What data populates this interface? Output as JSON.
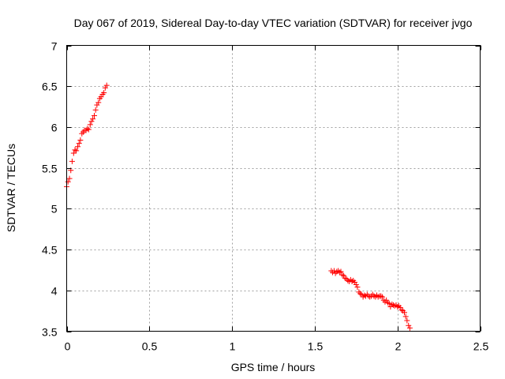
{
  "chart_data": {
    "type": "scatter",
    "title": "Day 067 of 2019, Sidereal Day-to-day VTEC variation (SDTVAR) for receiver jvgo",
    "xlabel": "GPS time / hours",
    "ylabel": "SDTVAR / TECUs",
    "xlim": [
      0,
      2.5
    ],
    "ylim": [
      3.5,
      7
    ],
    "xticks": [
      0,
      0.5,
      1,
      1.5,
      2,
      2.5
    ],
    "xtick_labels": [
      "0",
      "0.5",
      "1",
      "1.5",
      "2",
      "2.5"
    ],
    "yticks": [
      3.5,
      4,
      4.5,
      5,
      5.5,
      6,
      6.5,
      7
    ],
    "ytick_labels": [
      "3.5",
      "4",
      "4.5",
      "5",
      "5.5",
      "6",
      "6.5",
      "7"
    ],
    "grid": true,
    "marker": "+",
    "marker_color": "#ff0000",
    "series": [
      {
        "x": [
          0.0,
          0.008,
          0.017,
          0.025,
          0.033,
          0.042,
          0.05,
          0.058,
          0.067,
          0.075,
          0.083,
          0.092,
          0.1,
          0.108,
          0.117,
          0.125,
          0.133,
          0.142,
          0.15,
          0.158,
          0.167,
          0.175,
          0.183,
          0.192,
          0.2,
          0.208,
          0.217,
          0.225,
          0.233,
          0.242
        ],
        "y": [
          5.27,
          5.33,
          5.37,
          5.47,
          5.58,
          5.68,
          5.72,
          5.71,
          5.76,
          5.8,
          5.84,
          5.92,
          5.94,
          5.96,
          5.96,
          5.98,
          5.97,
          6.03,
          6.07,
          6.1,
          6.14,
          6.21,
          6.27,
          6.3,
          6.35,
          6.37,
          6.4,
          6.42,
          6.48,
          6.51
        ]
      },
      {
        "x": [
          1.6,
          1.608,
          1.617,
          1.625,
          1.633,
          1.642,
          1.65,
          1.658,
          1.667,
          1.675,
          1.683,
          1.692,
          1.7,
          1.708,
          1.717,
          1.725,
          1.733,
          1.742,
          1.75,
          1.758,
          1.767,
          1.775,
          1.783,
          1.792,
          1.8,
          1.808,
          1.817,
          1.825,
          1.833,
          1.842,
          1.85,
          1.858,
          1.867,
          1.875,
          1.883,
          1.892,
          1.9,
          1.908,
          1.917,
          1.925,
          1.933,
          1.942,
          1.95,
          1.958,
          1.967,
          1.975,
          1.983,
          1.992,
          2.0,
          2.008,
          2.017,
          2.025,
          2.033,
          2.042,
          2.05,
          2.058,
          2.067,
          2.075
        ],
        "y": [
          4.24,
          4.22,
          4.24,
          4.21,
          4.23,
          4.24,
          4.22,
          4.23,
          4.19,
          4.18,
          4.15,
          4.14,
          4.12,
          4.11,
          4.13,
          4.11,
          4.12,
          4.1,
          4.07,
          4.04,
          3.98,
          3.96,
          3.95,
          3.92,
          3.94,
          3.93,
          3.95,
          3.93,
          3.92,
          3.93,
          3.95,
          3.93,
          3.92,
          3.94,
          3.92,
          3.93,
          3.93,
          3.92,
          3.88,
          3.86,
          3.88,
          3.85,
          3.84,
          3.8,
          3.83,
          3.82,
          3.81,
          3.82,
          3.8,
          3.81,
          3.79,
          3.76,
          3.75,
          3.73,
          3.68,
          3.63,
          3.57,
          3.54
        ]
      }
    ]
  }
}
